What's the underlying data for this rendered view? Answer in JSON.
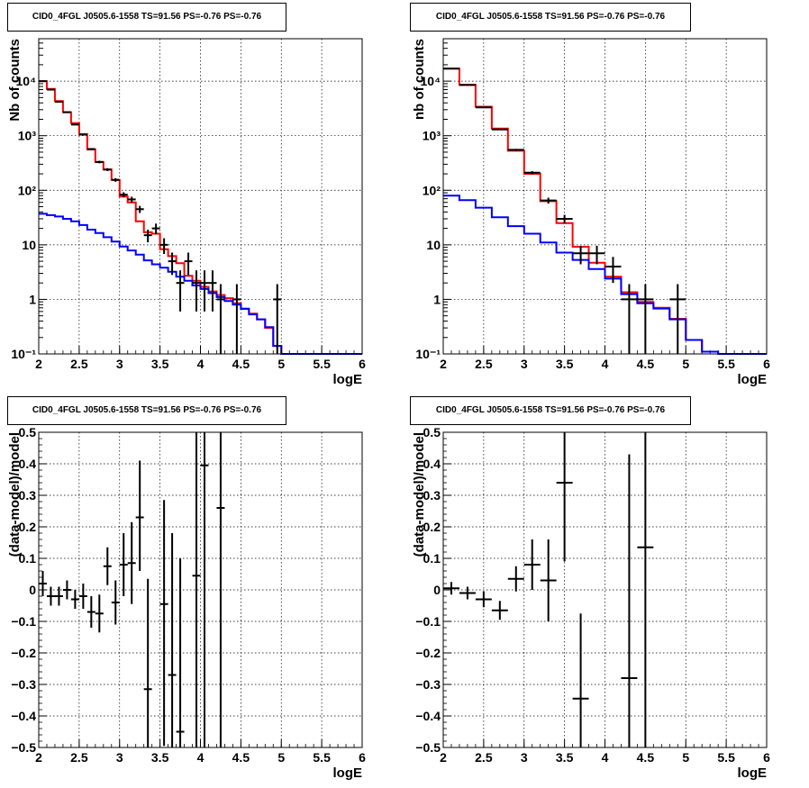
{
  "colors": {
    "data": "#000000",
    "total_model": "#ff0000",
    "background_model": "#0000ff",
    "grid": "#000000"
  },
  "chart_data": [
    {
      "type": "histogram",
      "title": "CID0_4FGL J0505.6-1558 TS=91.56 PS=-0.76 PS=-0.76",
      "xlabel": "logE",
      "ylabel": "Nb of counts",
      "xlim": [
        2,
        6
      ],
      "ylim": [
        0.1,
        60000
      ],
      "yscale": "log",
      "grid": true,
      "xticks": [
        2,
        2.5,
        3,
        3.5,
        4,
        4.5,
        5,
        5.5,
        6
      ],
      "xtick_labels": [
        "2",
        "2.5",
        "3",
        "3.5",
        "4",
        "4.5",
        "5",
        "5.5",
        "6"
      ],
      "yticks": [
        0.1,
        1,
        10,
        100,
        1000,
        10000
      ],
      "ytick_labels": [
        "10⁻¹",
        "1",
        "10",
        "10²",
        "10³",
        "10⁴"
      ],
      "bin_width": 0.1,
      "series": [
        {
          "kind": "step",
          "color": "#ff0000",
          "x": [
            2.05,
            2.15,
            2.25,
            2.35,
            2.45,
            2.55,
            2.65,
            2.75,
            2.85,
            2.95,
            3.05,
            3.15,
            3.25,
            3.35,
            3.45,
            3.55,
            3.65,
            3.75,
            3.85,
            3.95,
            4.05,
            4.15,
            4.25,
            4.35,
            4.45,
            4.55,
            4.65,
            4.75,
            4.85,
            4.95,
            5.05,
            5.15,
            5.25,
            5.35,
            5.45,
            5.55,
            5.65,
            5.75,
            5.85,
            5.95
          ],
          "y": [
            10000,
            7200,
            4300,
            2700,
            1700,
            1070,
            560,
            330,
            240,
            155,
            77,
            60,
            27,
            17,
            16,
            8.3,
            6.2,
            4.6,
            2.7,
            2.2,
            1.7,
            1.4,
            1.2,
            1.05,
            0.85,
            0.68,
            0.55,
            0.43,
            0.3,
            0.14,
            0.1,
            0.1,
            0.1,
            0.1,
            0.1,
            0.1,
            0.1,
            0.1,
            0.1,
            0.1
          ]
        },
        {
          "kind": "step",
          "color": "#0000ff",
          "x": [
            2.05,
            2.15,
            2.25,
            2.35,
            2.45,
            2.55,
            2.65,
            2.75,
            2.85,
            2.95,
            3.05,
            3.15,
            3.25,
            3.35,
            3.45,
            3.55,
            3.65,
            3.75,
            3.85,
            3.95,
            4.05,
            4.15,
            4.25,
            4.35,
            4.45,
            4.55,
            4.65,
            4.75,
            4.85,
            4.95,
            5.05,
            5.15,
            5.25,
            5.35,
            5.45,
            5.55,
            5.65,
            5.75,
            5.85,
            5.95
          ],
          "y": [
            37,
            35,
            33,
            30,
            27,
            23,
            19,
            16.5,
            13.8,
            11.5,
            9.3,
            7.9,
            6.6,
            5.2,
            4.4,
            3.8,
            3.2,
            2.6,
            2.2,
            1.8,
            1.55,
            1.3,
            1.1,
            0.93,
            0.8,
            0.67,
            0.53,
            0.43,
            0.31,
            0.14,
            0.1,
            0.1,
            0.1,
            0.1,
            0.1,
            0.1,
            0.1,
            0.1,
            0.1,
            0.1
          ]
        },
        {
          "kind": "errorbar",
          "color": "#000000",
          "x": [
            2.05,
            2.15,
            2.25,
            2.35,
            2.45,
            2.55,
            2.65,
            2.75,
            2.85,
            2.95,
            3.05,
            3.15,
            3.25,
            3.35,
            3.45,
            3.55,
            3.65,
            3.75,
            3.85,
            3.95,
            4.05,
            4.15,
            4.25,
            4.45,
            4.95
          ],
          "y": [
            10000,
            7000,
            4200,
            2700,
            1600,
            1050,
            570,
            330,
            240,
            155,
            83,
            68,
            45,
            15,
            20,
            10,
            5,
            2,
            5,
            2,
            2,
            2,
            1,
            1,
            1
          ],
          "yerr_low": [
            100,
            84,
            65,
            52,
            40,
            32,
            24,
            18,
            15,
            12,
            9,
            8,
            6.7,
            3.9,
            4.5,
            3.2,
            2.2,
            1.4,
            2.2,
            1.4,
            1.4,
            1.4,
            0.9,
            0.9,
            0.9
          ],
          "yerr_high": [
            100,
            84,
            65,
            52,
            40,
            32,
            24,
            18,
            15,
            12,
            9,
            8,
            6.7,
            3.9,
            4.5,
            3.2,
            2.2,
            1.4,
            2.2,
            1.4,
            1.4,
            1.4,
            0.9,
            0.9,
            0.9
          ]
        }
      ]
    },
    {
      "type": "histogram",
      "title": "CID0_4FGL J0505.6-1558 TS=91.56 PS=-0.76 PS=-0.76",
      "xlabel": "logE",
      "ylabel": "nb of counts",
      "xlim": [
        2,
        6
      ],
      "ylim": [
        0.1,
        60000
      ],
      "yscale": "log",
      "grid": true,
      "xticks": [
        2,
        2.5,
        3,
        3.5,
        4,
        4.5,
        5,
        5.5,
        6
      ],
      "xtick_labels": [
        "2",
        "2.5",
        "3",
        "3.5",
        "4",
        "4.5",
        "5",
        "5.5",
        "6"
      ],
      "yticks": [
        0.1,
        1,
        10,
        100,
        1000,
        10000
      ],
      "ytick_labels": [
        "10⁻¹",
        "1",
        "10",
        "10²",
        "10³",
        "10⁴"
      ],
      "bin_width": 0.2,
      "series": [
        {
          "kind": "step",
          "color": "#ff0000",
          "x": [
            2.1,
            2.3,
            2.5,
            2.7,
            2.9,
            3.1,
            3.3,
            3.5,
            3.7,
            3.9,
            4.1,
            4.3,
            4.5,
            4.7,
            4.9,
            5.1,
            5.3,
            5.5,
            5.7,
            5.9
          ],
          "y": [
            17000,
            8600,
            3400,
            1350,
            530,
            200,
            63,
            25,
            9.2,
            4.7,
            2.6,
            1.35,
            0.9,
            0.7,
            0.44,
            0.18,
            0.11,
            0.1,
            0.1,
            0.1
          ]
        },
        {
          "kind": "step",
          "color": "#0000ff",
          "x": [
            2.1,
            2.3,
            2.5,
            2.7,
            2.9,
            3.1,
            3.3,
            3.5,
            3.7,
            3.9,
            4.1,
            4.3,
            4.5,
            4.7,
            4.9,
            5.1,
            5.3,
            5.5,
            5.7,
            5.9
          ],
          "y": [
            80,
            66,
            48,
            32,
            22,
            16,
            11,
            7.2,
            5.3,
            3.6,
            2.4,
            1.25,
            0.85,
            0.68,
            0.43,
            0.18,
            0.11,
            0.1,
            0.1,
            0.1
          ]
        },
        {
          "kind": "errorbar",
          "color": "#000000",
          "x": [
            2.1,
            2.3,
            2.5,
            2.7,
            2.9,
            3.1,
            3.3,
            3.5,
            3.7,
            3.9,
            4.1,
            4.3,
            4.5,
            4.9
          ],
          "y": [
            17000,
            8500,
            3300,
            1300,
            550,
            210,
            65,
            30,
            7,
            7,
            4,
            1,
            1,
            1
          ],
          "yerr_low": [
            130,
            92,
            57,
            36,
            23,
            14,
            8,
            5.5,
            2.6,
            2.6,
            2,
            0.9,
            0.9,
            0.9
          ],
          "yerr_high": [
            130,
            92,
            57,
            36,
            23,
            14,
            8,
            5.5,
            2.6,
            2.6,
            2,
            0.9,
            0.9,
            0.9
          ]
        }
      ]
    },
    {
      "type": "errorbar",
      "title": "CID0_4FGL J0505.6-1558 TS=91.56 PS=-0.76 PS=-0.76",
      "xlabel": "logE",
      "ylabel": "(data-model)/model",
      "xlim": [
        2,
        6
      ],
      "ylim": [
        -0.5,
        0.5
      ],
      "grid": true,
      "xticks": [
        2,
        2.5,
        3,
        3.5,
        4,
        4.5,
        5,
        5.5,
        6
      ],
      "xtick_labels": [
        "2",
        "2.5",
        "3",
        "3.5",
        "4",
        "4.5",
        "5",
        "5.5",
        "6"
      ],
      "yticks": [
        -0.5,
        -0.4,
        -0.3,
        -0.2,
        -0.1,
        0,
        0.1,
        0.2,
        0.3,
        0.4,
        0.5
      ],
      "ytick_labels": [
        "−0.5",
        "−0.4",
        "−0.3",
        "−0.2",
        "−0.1",
        "0",
        "0.1",
        "0.2",
        "0.3",
        "0.4",
        "0.5"
      ],
      "bin_width": 0.1,
      "series": [
        {
          "kind": "errorbar",
          "color": "#000000",
          "x": [
            2.05,
            2.15,
            2.25,
            2.35,
            2.45,
            2.55,
            2.65,
            2.75,
            2.85,
            2.95,
            3.05,
            3.15,
            3.25,
            3.35,
            3.55,
            3.65,
            3.75,
            3.95,
            4.05,
            4.25
          ],
          "y": [
            0.02,
            -0.02,
            -0.02,
            0.0,
            -0.03,
            -0.02,
            -0.07,
            -0.075,
            0.075,
            -0.04,
            0.08,
            0.085,
            0.23,
            -0.315,
            -0.045,
            -0.27,
            -0.45,
            0.045,
            0.395,
            0.26
          ],
          "yerr_low": [
            0.04,
            0.03,
            0.03,
            0.03,
            0.03,
            0.04,
            0.05,
            0.06,
            0.06,
            0.07,
            0.1,
            0.13,
            0.17,
            0.35,
            0.45,
            0.55,
            0.6,
            0.75,
            0.95,
            1.2
          ],
          "yerr_high": [
            0.04,
            0.03,
            0.03,
            0.03,
            0.03,
            0.04,
            0.05,
            0.06,
            0.06,
            0.07,
            0.1,
            0.13,
            0.18,
            0.35,
            0.33,
            0.45,
            0.55,
            0.75,
            0.95,
            1.2
          ]
        }
      ]
    },
    {
      "type": "errorbar",
      "title": "CID0_4FGL J0505.6-1558 TS=91.56 PS=-0.76 PS=-0.76",
      "xlabel": "logE",
      "ylabel": "(data-model)/model",
      "xlim": [
        2,
        6
      ],
      "ylim": [
        -0.5,
        0.5
      ],
      "grid": true,
      "xticks": [
        2,
        2.5,
        3,
        3.5,
        4,
        4.5,
        5,
        5.5,
        6
      ],
      "xtick_labels": [
        "2",
        "2.5",
        "3",
        "3.5",
        "4",
        "4.5",
        "5",
        "5.5",
        "6"
      ],
      "yticks": [
        -0.5,
        -0.4,
        -0.3,
        -0.2,
        -0.1,
        0,
        0.1,
        0.2,
        0.3,
        0.4,
        0.5
      ],
      "ytick_labels": [
        "−0.5",
        "−0.4",
        "−0.3",
        "−0.2",
        "−0.1",
        "0",
        "0.1",
        "0.2",
        "0.3",
        "0.4",
        "0.5"
      ],
      "bin_width": 0.2,
      "series": [
        {
          "kind": "errorbar",
          "color": "#000000",
          "x": [
            2.1,
            2.3,
            2.5,
            2.7,
            2.9,
            3.1,
            3.3,
            3.5,
            3.7,
            4.3,
            4.5
          ],
          "y": [
            0.005,
            -0.01,
            -0.03,
            -0.065,
            0.035,
            0.08,
            0.03,
            0.34,
            -0.345,
            -0.28,
            0.135
          ],
          "yerr_low": [
            0.02,
            0.02,
            0.025,
            0.03,
            0.04,
            0.08,
            0.13,
            0.25,
            0.27,
            0.72,
            0.85
          ],
          "yerr_high": [
            0.02,
            0.02,
            0.025,
            0.03,
            0.04,
            0.08,
            0.13,
            0.25,
            0.27,
            0.71,
            0.85
          ]
        }
      ]
    }
  ]
}
